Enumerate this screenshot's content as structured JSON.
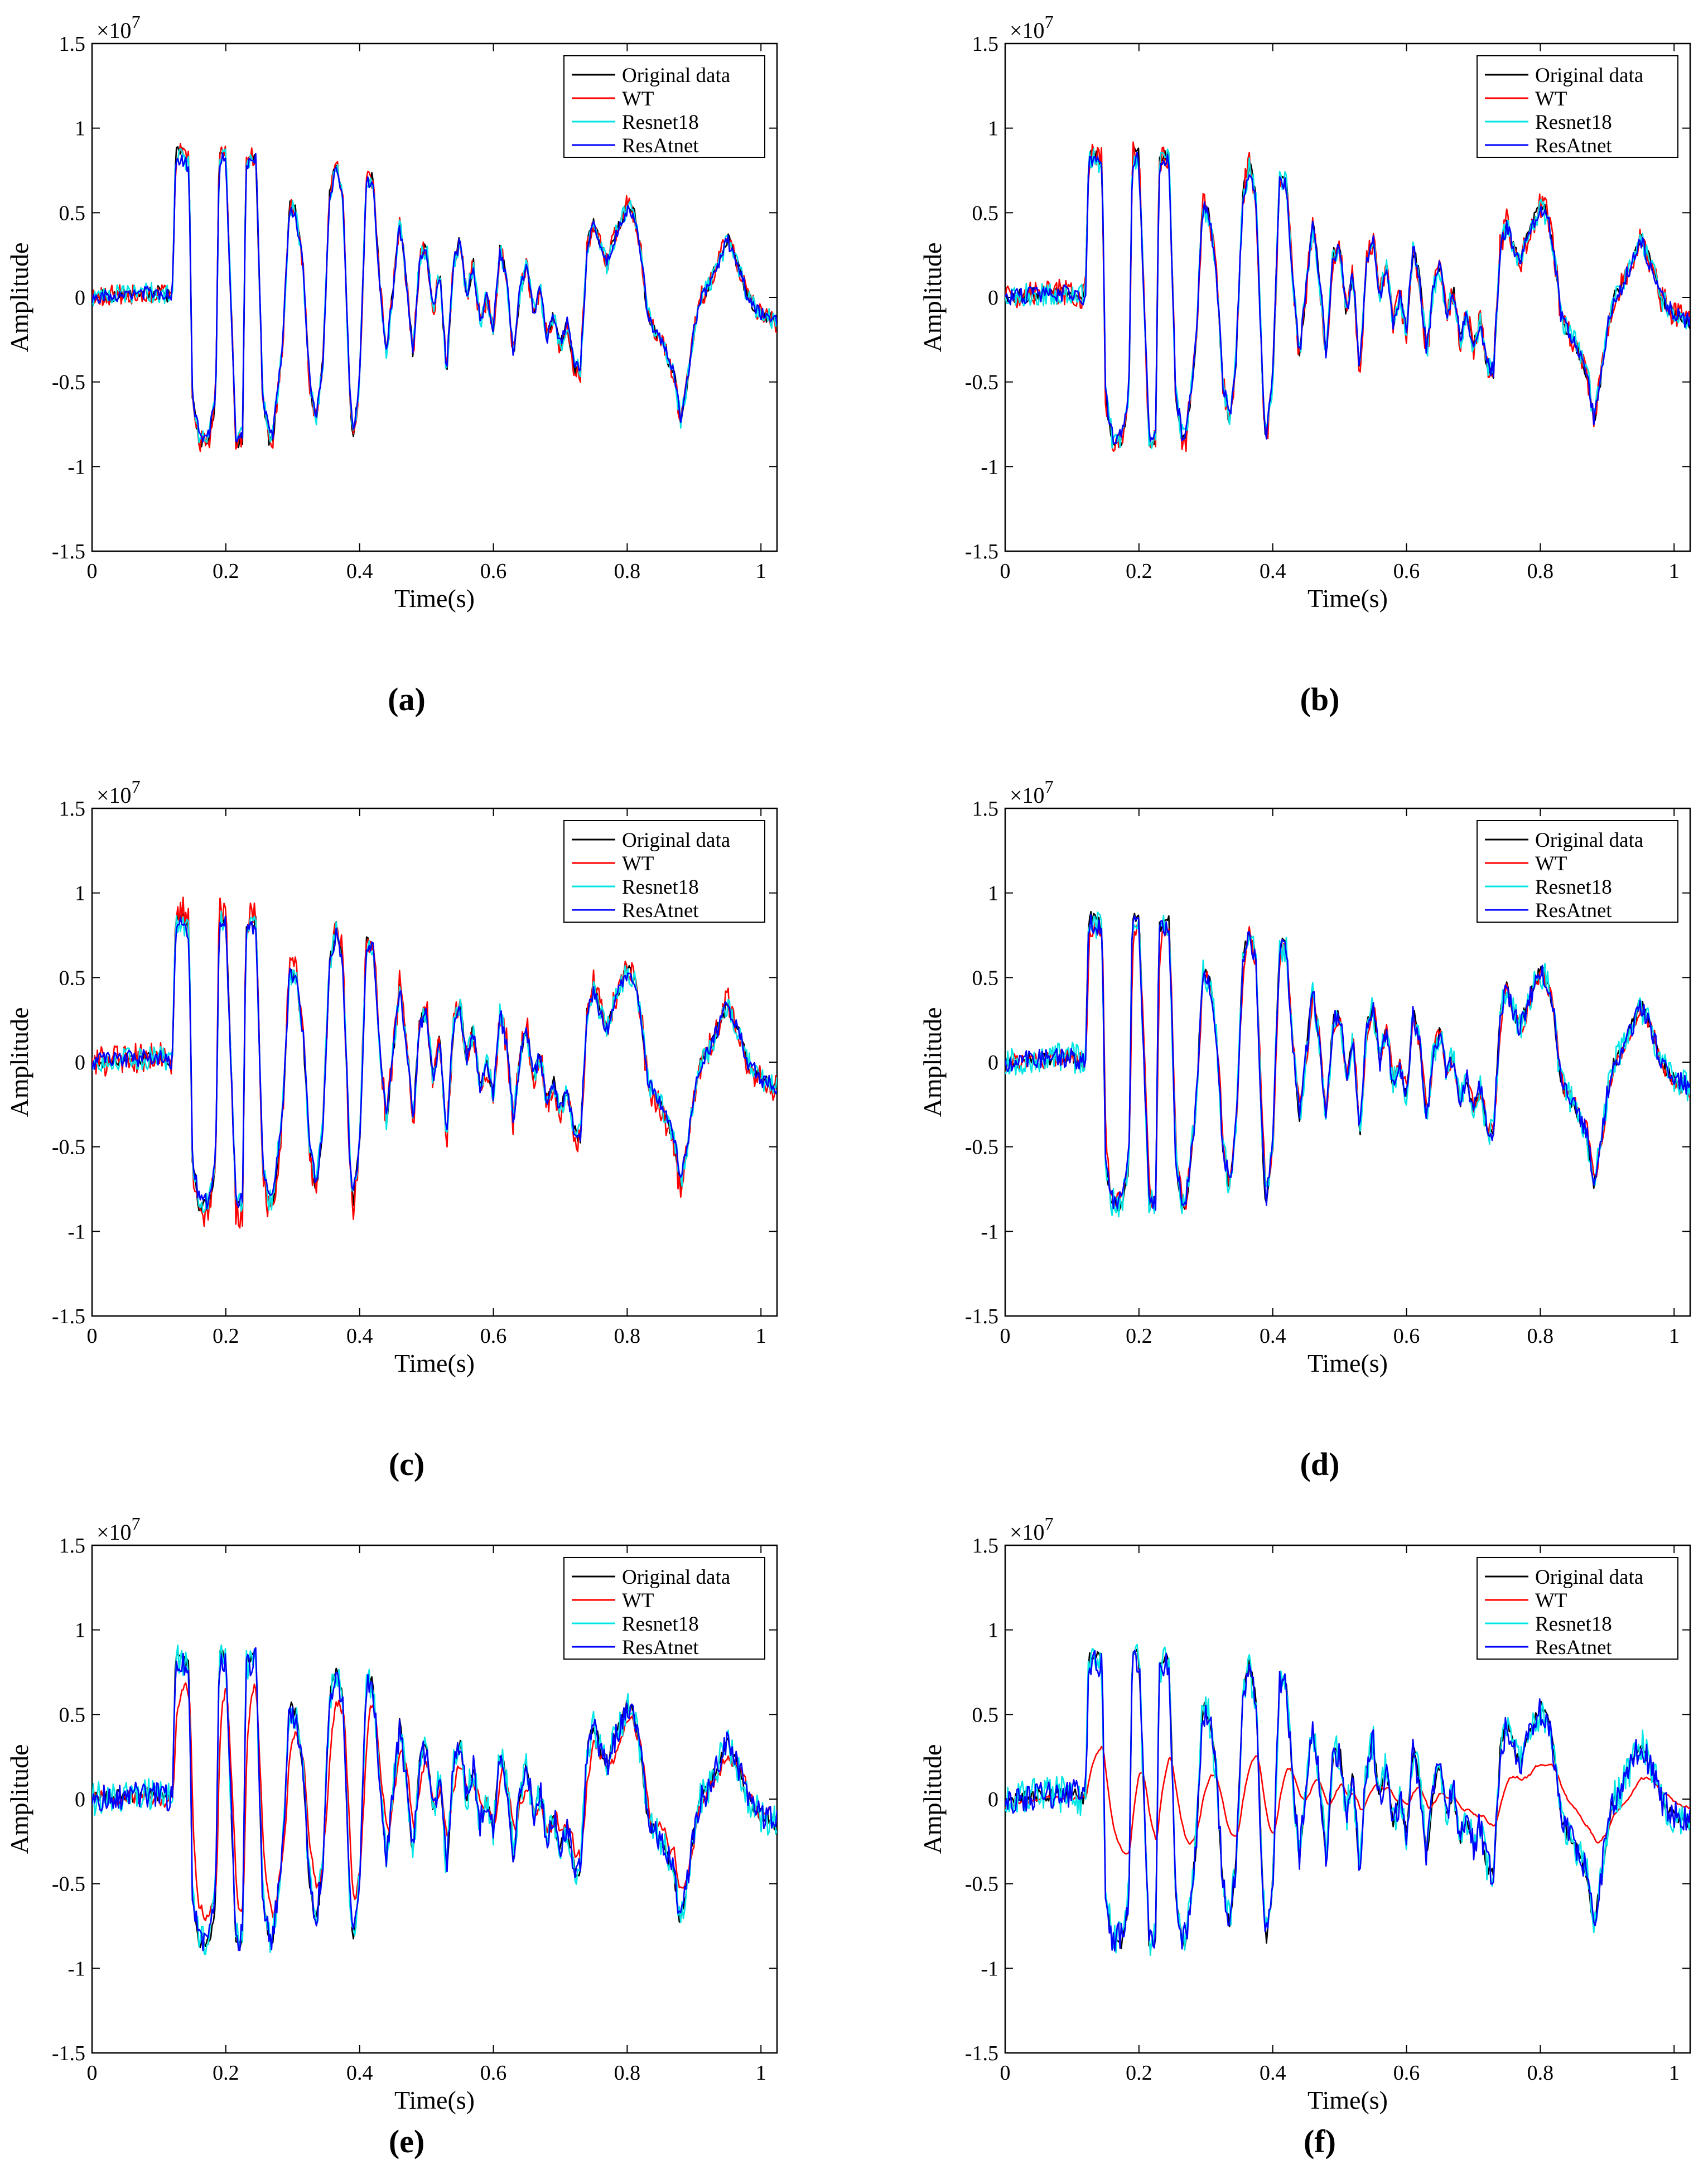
{
  "figure": {
    "panel_labels": [
      "(a)",
      "(b)",
      "(c)",
      "(d)",
      "(e)",
      "(f)"
    ]
  },
  "colors": {
    "original": "#000000",
    "wt": "#ff0000",
    "resnet": "#00e5e5",
    "resatnet": "#0000ff"
  },
  "chart_data": [
    {
      "id": "a",
      "type": "line",
      "xlabel": "Time(s)",
      "ylabel": "Amplitude",
      "exponent_base": "×10",
      "exponent_power": "7",
      "xlim": [
        0,
        1.024
      ],
      "ylim": [
        -1.5,
        1.5
      ],
      "x_ticks": [
        0,
        0.2,
        0.4,
        0.6,
        0.8,
        1
      ],
      "x_tick_labels": [
        "0",
        "0.2",
        "0.4",
        "0.6",
        "0.8",
        "1"
      ],
      "y_ticks": [
        -1.5,
        -1,
        -0.5,
        0,
        0.5,
        1,
        1.5
      ],
      "y_tick_labels": [
        "-1.5",
        "-1",
        "-0.5",
        "0",
        "0.5",
        "1",
        "1.5"
      ],
      "legend": [
        "Original data",
        "WT",
        "Resnet18",
        "ResAtnet"
      ],
      "legend_position": "top-right",
      "seed": 11,
      "variant": {
        "wt_smooth": 0,
        "wt_noise": 0.06,
        "res_noise": 0.06,
        "att_noise": 0.04,
        "wt_scale": 1.0
      }
    },
    {
      "id": "b",
      "type": "line",
      "xlabel": "Time(s)",
      "ylabel": "Amplitude",
      "exponent_base": "×10",
      "exponent_power": "7",
      "xlim": [
        0,
        1.024
      ],
      "ylim": [
        -1.5,
        1.5
      ],
      "x_ticks": [
        0,
        0.2,
        0.4,
        0.6,
        0.8,
        1
      ],
      "x_tick_labels": [
        "0",
        "0.2",
        "0.4",
        "0.6",
        "0.8",
        "1"
      ],
      "y_ticks": [
        -1.5,
        -1,
        -0.5,
        0,
        0.5,
        1,
        1.5
      ],
      "y_tick_labels": [
        "-1.5",
        "-1",
        "-0.5",
        "0",
        "0.5",
        "1",
        "1.5"
      ],
      "legend": [
        "Original data",
        "WT",
        "Resnet18",
        "ResAtnet"
      ],
      "legend_position": "top-right",
      "seed": 23,
      "variant": {
        "wt_smooth": 0,
        "wt_noise": 0.08,
        "res_noise": 0.07,
        "att_noise": 0.05,
        "wt_scale": 1.0
      }
    },
    {
      "id": "c",
      "type": "line",
      "xlabel": "Time(s)",
      "ylabel": "Amplitude",
      "exponent_base": "×10",
      "exponent_power": "7",
      "xlim": [
        0,
        1.024
      ],
      "ylim": [
        -1.5,
        1.5
      ],
      "x_ticks": [
        0,
        0.2,
        0.4,
        0.6,
        0.8,
        1
      ],
      "x_tick_labels": [
        "0",
        "0.2",
        "0.4",
        "0.6",
        "0.8",
        "1"
      ],
      "y_ticks": [
        -1.5,
        -1,
        -0.5,
        0,
        0.5,
        1,
        1.5
      ],
      "y_tick_labels": [
        "-1.5",
        "-1",
        "-0.5",
        "0",
        "0.5",
        "1",
        "1.5"
      ],
      "legend": [
        "Original data",
        "WT",
        "Resnet18",
        "ResAtnet"
      ],
      "legend_position": "top-right",
      "seed": 37,
      "variant": {
        "wt_smooth": 0,
        "wt_noise": 0.09,
        "res_noise": 0.07,
        "att_noise": 0.05,
        "wt_scale": 1.05
      }
    },
    {
      "id": "d",
      "type": "line",
      "xlabel": "Time(s)",
      "ylabel": "Amplitude",
      "exponent_base": "×10",
      "exponent_power": "7",
      "xlim": [
        0,
        1.024
      ],
      "ylim": [
        -1.5,
        1.5
      ],
      "x_ticks": [
        0,
        0.2,
        0.4,
        0.6,
        0.8,
        1
      ],
      "x_tick_labels": [
        "0",
        "0.2",
        "0.4",
        "0.6",
        "0.8",
        "1"
      ],
      "y_ticks": [
        -1.5,
        -1,
        -0.5,
        0,
        0.5,
        1,
        1.5
      ],
      "y_tick_labels": [
        "-1.5",
        "-1",
        "-0.5",
        "0",
        "0.5",
        "1",
        "1.5"
      ],
      "legend": [
        "Original data",
        "WT",
        "Resnet18",
        "ResAtnet"
      ],
      "legend_position": "top-right",
      "seed": 53,
      "variant": {
        "wt_smooth": 0.3,
        "wt_noise": 0.08,
        "res_noise": 0.09,
        "att_noise": 0.06,
        "wt_scale": 0.95
      }
    },
    {
      "id": "e",
      "type": "line",
      "xlabel": "Time(s)",
      "ylabel": "Amplitude",
      "exponent_base": "×10",
      "exponent_power": "7",
      "xlim": [
        0,
        1.024
      ],
      "ylim": [
        -1.5,
        1.5
      ],
      "x_ticks": [
        0,
        0.2,
        0.4,
        0.6,
        0.8,
        1
      ],
      "x_tick_labels": [
        "0",
        "0.2",
        "0.4",
        "0.6",
        "0.8",
        "1"
      ],
      "y_ticks": [
        -1.5,
        -1,
        -0.5,
        0,
        0.5,
        1,
        1.5
      ],
      "y_tick_labels": [
        "-1.5",
        "-1",
        "-0.5",
        "0",
        "0.5",
        "1",
        "1.5"
      ],
      "legend": [
        "Original data",
        "WT",
        "Resnet18",
        "ResAtnet"
      ],
      "legend_position": "top-right",
      "seed": 71,
      "variant": {
        "wt_smooth": 0.6,
        "wt_noise": 0.1,
        "res_noise": 0.1,
        "att_noise": 0.08,
        "wt_scale": 0.8
      }
    },
    {
      "id": "f",
      "type": "line",
      "xlabel": "Time(s)",
      "ylabel": "Amplitude",
      "exponent_base": "×10",
      "exponent_power": "7",
      "xlim": [
        0,
        1.024
      ],
      "ylim": [
        -1.5,
        1.5
      ],
      "x_ticks": [
        0,
        0.2,
        0.4,
        0.6,
        0.8,
        1
      ],
      "x_tick_labels": [
        "0",
        "0.2",
        "0.4",
        "0.6",
        "0.8",
        "1"
      ],
      "y_ticks": [
        -1.5,
        -1,
        -0.5,
        0,
        0.5,
        1,
        1.5
      ],
      "y_tick_labels": [
        "-1.5",
        "-1",
        "-0.5",
        "0",
        "0.5",
        "1",
        "1.5"
      ],
      "legend": [
        "Original data",
        "WT",
        "Resnet18",
        "ResAtnet"
      ],
      "legend_position": "top-right",
      "seed": 97,
      "variant": {
        "wt_smooth": 0.85,
        "wt_noise": 0.06,
        "res_noise": 0.11,
        "att_noise": 0.09,
        "wt_scale": 0.45
      }
    }
  ],
  "reference_signal": {
    "time_s": [
      0,
      0.05,
      0.1,
      0.12,
      0.125,
      0.135,
      0.145,
      0.15,
      0.16,
      0.175,
      0.185,
      0.19,
      0.2,
      0.215,
      0.225,
      0.23,
      0.245,
      0.255,
      0.265,
      0.27,
      0.285,
      0.295,
      0.305,
      0.315,
      0.325,
      0.335,
      0.345,
      0.355,
      0.365,
      0.375,
      0.385,
      0.39,
      0.4,
      0.41,
      0.42,
      0.43,
      0.44,
      0.45,
      0.46,
      0.47,
      0.48,
      0.49,
      0.5,
      0.51,
      0.52,
      0.53,
      0.54,
      0.55,
      0.56,
      0.57,
      0.58,
      0.59,
      0.6,
      0.61,
      0.62,
      0.63,
      0.64,
      0.65,
      0.66,
      0.67,
      0.68,
      0.69,
      0.7,
      0.71,
      0.72,
      0.73,
      0.74,
      0.75,
      0.76,
      0.77,
      0.78,
      0.79,
      0.8,
      0.81,
      0.82,
      0.83,
      0.84,
      0.85,
      0.86,
      0.87,
      0.88,
      0.89,
      0.9,
      0.91,
      0.92,
      0.93,
      0.94,
      0.95,
      0.96,
      0.97,
      0.98,
      0.99,
      1.0,
      1.024
    ],
    "amplitude_e7": [
      0,
      0.02,
      0.03,
      0.0,
      0.85,
      0.85,
      0.8,
      -0.6,
      -0.85,
      -0.85,
      -0.6,
      0.85,
      0.85,
      -0.85,
      -0.85,
      0.8,
      0.85,
      -0.6,
      -0.85,
      -0.85,
      -0.3,
      0.55,
      0.5,
      0.2,
      -0.5,
      -0.75,
      -0.4,
      0.6,
      0.8,
      0.6,
      -0.55,
      -0.85,
      -0.5,
      0.7,
      0.7,
      0.1,
      -0.35,
      0.05,
      0.45,
      0.1,
      -0.35,
      0.25,
      0.3,
      -0.1,
      0.15,
      -0.45,
      0.2,
      0.35,
      0.0,
      0.2,
      -0.15,
      0.0,
      -0.2,
      0.3,
      0.1,
      -0.35,
      0.05,
      0.2,
      -0.1,
      0.05,
      -0.25,
      -0.1,
      -0.3,
      -0.15,
      -0.4,
      -0.45,
      0.3,
      0.45,
      0.3,
      0.2,
      0.35,
      0.45,
      0.55,
      0.5,
      0.3,
      -0.1,
      -0.2,
      -0.25,
      -0.35,
      -0.45,
      -0.75,
      -0.5,
      -0.2,
      0.0,
      0.05,
      0.15,
      0.25,
      0.35,
      0.25,
      0.15,
      0.0,
      -0.05,
      -0.1,
      -0.15
    ]
  }
}
